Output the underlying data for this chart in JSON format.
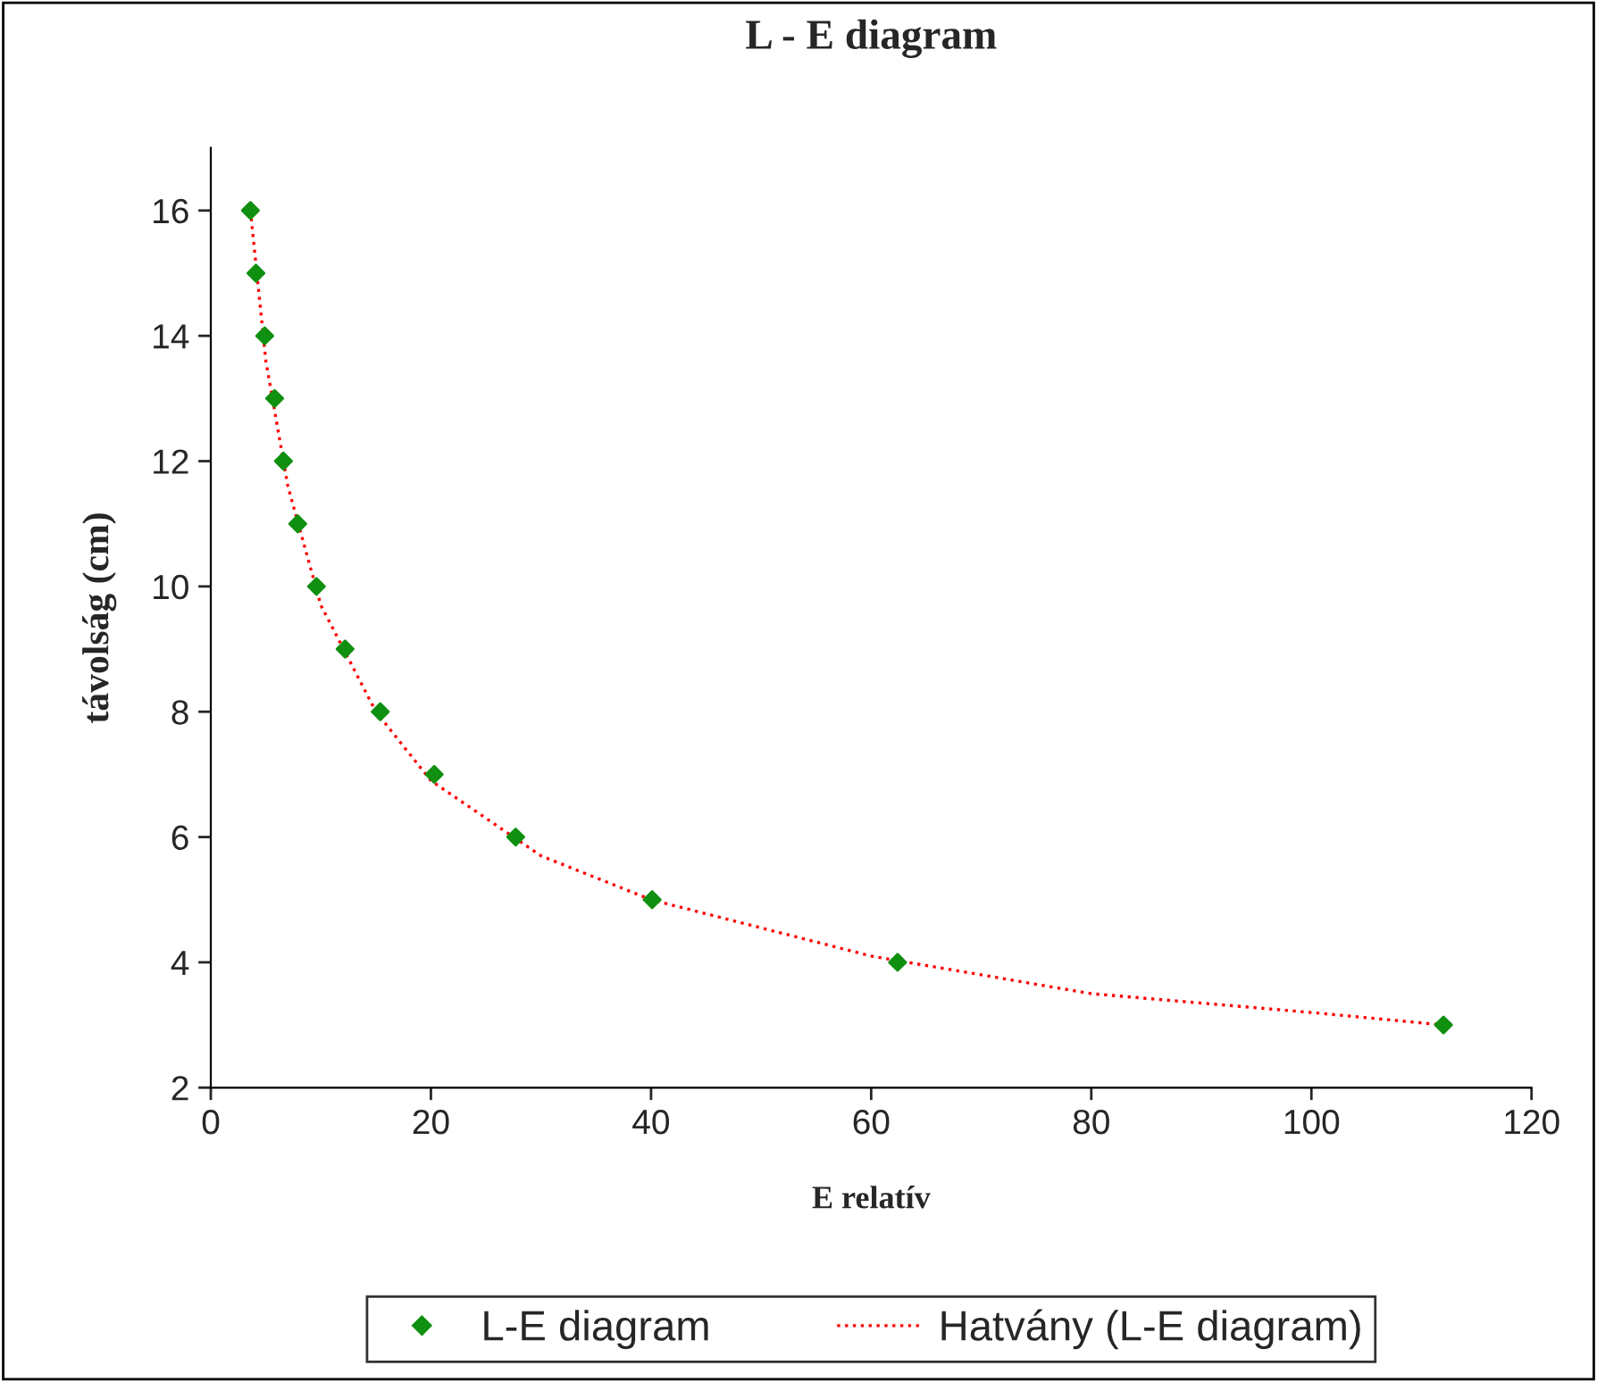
{
  "chart_data": {
    "type": "scatter",
    "title": "L - E diagram",
    "xlabel": "E relatív",
    "ylabel": "távolság (cm)",
    "xlim": [
      0,
      120
    ],
    "xticks": [
      0,
      20,
      40,
      60,
      80,
      100,
      120
    ],
    "ylim": [
      2,
      17
    ],
    "yticks": [
      2,
      4,
      6,
      8,
      10,
      12,
      14,
      16
    ],
    "grid": false,
    "legend": "bottom",
    "series": [
      {
        "name": "L-E diagram",
        "color": "#109010",
        "marker": "diamond",
        "x": [
          3.6,
          4.1,
          4.9,
          5.8,
          6.6,
          7.9,
          9.6,
          12.2,
          15.4,
          20.3,
          27.7,
          40.1,
          62.4,
          112
        ],
        "values": [
          16,
          15,
          14,
          13,
          12,
          11,
          10,
          9,
          8,
          7,
          6,
          5,
          4,
          3
        ]
      },
      {
        "name": "Hatvány (L-E diagram)",
        "type": "line",
        "color": "#ff0000",
        "line_style": "dotted",
        "x": [
          3.6,
          5,
          7,
          10,
          15,
          20,
          30,
          40,
          60,
          80,
          100,
          112
        ],
        "values": [
          16.0,
          13.6,
          11.6,
          9.7,
          8.0,
          6.9,
          5.7,
          5.0,
          4.1,
          3.5,
          3.2,
          3.0
        ]
      }
    ]
  }
}
